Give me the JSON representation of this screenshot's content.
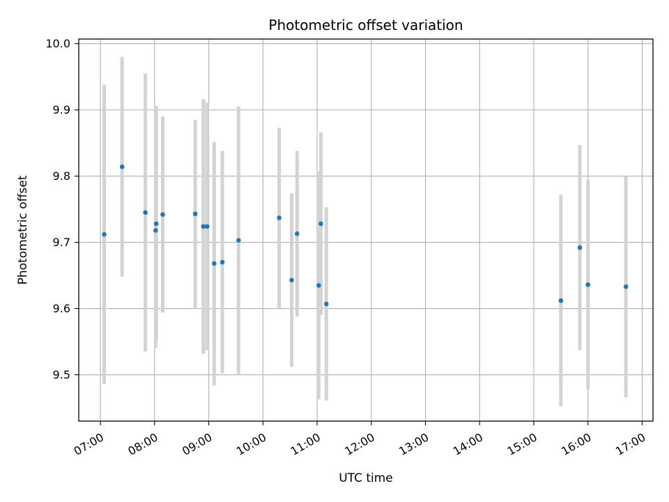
{
  "chart_data": {
    "type": "scatter",
    "title": "Photometric offset variation",
    "xlabel": "UTC time",
    "ylabel": "Photometric offset",
    "grid": true,
    "x_unit": "hours UTC",
    "xlim": [
      6.6,
      17.2
    ],
    "ylim": [
      9.43,
      10.007
    ],
    "x_ticks": [
      {
        "value": 7,
        "label": "07:00"
      },
      {
        "value": 8,
        "label": "08:00"
      },
      {
        "value": 9,
        "label": "09:00"
      },
      {
        "value": 10,
        "label": "10:00"
      },
      {
        "value": 11,
        "label": "11:00"
      },
      {
        "value": 12,
        "label": "12:00"
      },
      {
        "value": 13,
        "label": "13:00"
      },
      {
        "value": 14,
        "label": "14:00"
      },
      {
        "value": 15,
        "label": "15:00"
      },
      {
        "value": 16,
        "label": "16:00"
      },
      {
        "value": 17,
        "label": "17:00"
      }
    ],
    "y_ticks": [
      {
        "value": 9.5,
        "label": "9.5"
      },
      {
        "value": 9.6,
        "label": "9.6"
      },
      {
        "value": 9.7,
        "label": "9.7"
      },
      {
        "value": 9.8,
        "label": "9.8"
      },
      {
        "value": 9.9,
        "label": "9.9"
      },
      {
        "value": 10.0,
        "label": "10.0"
      }
    ],
    "point_color": "#1f77b4",
    "errorbar_color": "#d3d3d3",
    "series": [
      {
        "points": [
          {
            "x": 7.07,
            "y": 9.712,
            "err": 0.226
          },
          {
            "x": 7.4,
            "y": 9.814,
            "err": 0.166
          },
          {
            "x": 7.83,
            "y": 9.745,
            "err": 0.21
          },
          {
            "x": 8.02,
            "y": 9.718,
            "err": 0.177
          },
          {
            "x": 8.03,
            "y": 9.728,
            "err": 0.178
          },
          {
            "x": 8.15,
            "y": 9.742,
            "err": 0.148
          },
          {
            "x": 8.75,
            "y": 9.743,
            "err": 0.142
          },
          {
            "x": 8.9,
            "y": 9.724,
            "err": 0.192
          },
          {
            "x": 8.97,
            "y": 9.724,
            "err": 0.187
          },
          {
            "x": 9.1,
            "y": 9.668,
            "err": 0.184
          },
          {
            "x": 9.25,
            "y": 9.67,
            "err": 0.168
          },
          {
            "x": 9.55,
            "y": 9.703,
            "err": 0.202
          },
          {
            "x": 10.3,
            "y": 9.737,
            "err": 0.136
          },
          {
            "x": 10.53,
            "y": 9.643,
            "err": 0.131
          },
          {
            "x": 10.63,
            "y": 9.713,
            "err": 0.125
          },
          {
            "x": 11.03,
            "y": 9.635,
            "err": 0.172
          },
          {
            "x": 11.07,
            "y": 9.728,
            "err": 0.138
          },
          {
            "x": 11.17,
            "y": 9.607,
            "err": 0.146
          },
          {
            "x": 15.5,
            "y": 9.612,
            "err": 0.16
          },
          {
            "x": 15.85,
            "y": 9.692,
            "err": 0.155
          },
          {
            "x": 16.0,
            "y": 9.636,
            "err": 0.158
          },
          {
            "x": 16.7,
            "y": 9.633,
            "err": 0.167
          }
        ]
      }
    ]
  }
}
